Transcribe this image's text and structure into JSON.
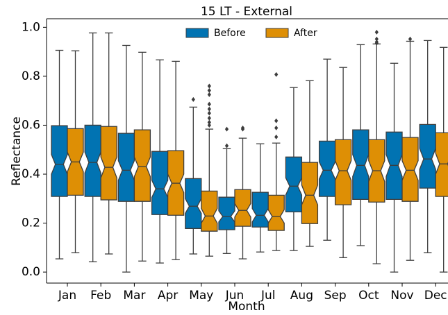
{
  "chart_data": {
    "type": "boxplot",
    "title": "15 LT - External",
    "x_label": "Month",
    "y_label": "Reflectance",
    "categories": [
      "Jan",
      "Feb",
      "Mar",
      "Apr",
      "May",
      "Jun",
      "Jul",
      "Aug",
      "Sep",
      "Oct",
      "Nov",
      "Dec"
    ],
    "ylim": [
      -0.045,
      1.035
    ],
    "yticks": [
      {
        "value": 0,
        "label": "0.0"
      },
      0.2,
      0.4,
      0.6,
      0.8,
      {
        "value": 1,
        "label": "1.0"
      }
    ],
    "legend": "upper center",
    "notched": true,
    "series": [
      {
        "name": "Before",
        "color": "#0173b2",
        "boxes": [
          {
            "whislo": 0.054,
            "q1": 0.309,
            "med": 0.44,
            "q3": 0.598,
            "whishi": 0.906,
            "notch": [
              0.4,
              0.48
            ],
            "fliers": []
          },
          {
            "whislo": 0.042,
            "q1": 0.309,
            "med": 0.448,
            "q3": 0.6,
            "whishi": 0.977,
            "notch": [
              0.405,
              0.49
            ],
            "fliers": []
          },
          {
            "whislo": 0.0,
            "q1": 0.289,
            "med": 0.416,
            "q3": 0.567,
            "whishi": 0.926,
            "notch": [
              0.375,
              0.455
            ],
            "fliers": []
          },
          {
            "whislo": 0.037,
            "q1": 0.235,
            "med": 0.34,
            "q3": 0.493,
            "whishi": 0.867,
            "notch": [
              0.305,
              0.375
            ],
            "fliers": []
          },
          {
            "whislo": 0.074,
            "q1": 0.178,
            "med": 0.269,
            "q3": 0.382,
            "whishi": 0.674,
            "notch": [
              0.24,
              0.3
            ],
            "fliers": [
              0.705
            ]
          },
          {
            "whislo": 0.076,
            "q1": 0.173,
            "med": 0.227,
            "q3": 0.306,
            "whishi": 0.504,
            "notch": [
              0.205,
              0.25
            ],
            "fliers": [
              0.584,
              0.516
            ]
          },
          {
            "whislo": 0.082,
            "q1": 0.184,
            "med": 0.232,
            "q3": 0.326,
            "whishi": 0.524,
            "notch": [
              0.205,
              0.26
            ],
            "fliers": []
          },
          {
            "whislo": 0.088,
            "q1": 0.246,
            "med": 0.351,
            "q3": 0.47,
            "whishi": 0.754,
            "notch": [
              0.315,
              0.385
            ],
            "fliers": []
          },
          {
            "whislo": 0.13,
            "q1": 0.309,
            "med": 0.416,
            "q3": 0.535,
            "whishi": 0.87,
            "notch": [
              0.38,
              0.45
            ],
            "fliers": []
          },
          {
            "whislo": 0.108,
            "q1": 0.297,
            "med": 0.436,
            "q3": 0.581,
            "whishi": 0.929,
            "notch": [
              0.39,
              0.48
            ],
            "fliers": []
          },
          {
            "whislo": 0.0,
            "q1": 0.297,
            "med": 0.436,
            "q3": 0.572,
            "whishi": 0.853,
            "notch": [
              0.39,
              0.48
            ],
            "fliers": []
          },
          {
            "whislo": 0.079,
            "q1": 0.343,
            "med": 0.462,
            "q3": 0.603,
            "whishi": 0.946,
            "notch": [
              0.42,
              0.505
            ],
            "fliers": []
          }
        ]
      },
      {
        "name": "After",
        "color": "#de8f05",
        "boxes": [
          {
            "whislo": 0.079,
            "q1": 0.314,
            "med": 0.45,
            "q3": 0.586,
            "whishi": 0.904,
            "notch": [
              0.41,
              0.49
            ],
            "fliers": []
          },
          {
            "whislo": 0.074,
            "q1": 0.295,
            "med": 0.428,
            "q3": 0.595,
            "whishi": 0.977,
            "notch": [
              0.385,
              0.47
            ],
            "fliers": []
          },
          {
            "whislo": 0.045,
            "q1": 0.289,
            "med": 0.431,
            "q3": 0.581,
            "whishi": 0.898,
            "notch": [
              0.39,
              0.47
            ],
            "fliers": []
          },
          {
            "whislo": 0.051,
            "q1": 0.232,
            "med": 0.363,
            "q3": 0.496,
            "whishi": 0.861,
            "notch": [
              0.325,
              0.4
            ],
            "fliers": []
          },
          {
            "whislo": 0.065,
            "q1": 0.167,
            "med": 0.229,
            "q3": 0.331,
            "whishi": 0.584,
            "notch": [
              0.2,
              0.26
            ],
            "fliers": [
              0.76,
              0.742,
              0.725,
              0.686,
              0.666,
              0.649,
              0.629,
              0.612,
              0.6
            ]
          },
          {
            "whislo": 0.054,
            "q1": 0.187,
            "med": 0.252,
            "q3": 0.337,
            "whishi": 0.547,
            "notch": [
              0.225,
              0.28
            ],
            "fliers": [
              0.589,
              0.584
            ]
          },
          {
            "whislo": 0.088,
            "q1": 0.17,
            "med": 0.227,
            "q3": 0.314,
            "whishi": 0.527,
            "notch": [
              0.2,
              0.255
            ],
            "fliers": [
              0.807,
              0.618,
              0.589,
              0.552
            ]
          },
          {
            "whislo": 0.105,
            "q1": 0.198,
            "med": 0.314,
            "q3": 0.448,
            "whishi": 0.782,
            "notch": [
              0.275,
              0.355
            ],
            "fliers": []
          },
          {
            "whislo": 0.059,
            "q1": 0.275,
            "med": 0.414,
            "q3": 0.541,
            "whishi": 0.836,
            "notch": [
              0.375,
              0.455
            ],
            "fliers": []
          },
          {
            "whislo": 0.034,
            "q1": 0.286,
            "med": 0.414,
            "q3": 0.541,
            "whishi": 0.932,
            "notch": [
              0.37,
              0.455
            ],
            "fliers": [
              0.98,
              0.952,
              0.94,
              0.935
            ]
          },
          {
            "whislo": 0.048,
            "q1": 0.289,
            "med": 0.416,
            "q3": 0.55,
            "whishi": 0.943,
            "notch": [
              0.375,
              0.455
            ],
            "fliers": [
              0.952
            ]
          },
          {
            "whislo": 0.0,
            "q1": 0.309,
            "med": 0.442,
            "q3": 0.569,
            "whishi": 0.918,
            "notch": [
              0.4,
              0.485
            ],
            "fliers": []
          }
        ]
      }
    ]
  }
}
